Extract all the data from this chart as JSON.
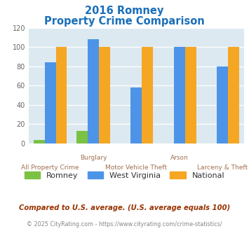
{
  "title_line1": "2016 Romney",
  "title_line2": "Property Crime Comparison",
  "title_color": "#1a6fba",
  "categories": [
    "All Property Crime",
    "Burglary",
    "Motor Vehicle Theft",
    "Arson",
    "Larceny & Theft"
  ],
  "x_labels_top": [
    "",
    "Burglary",
    "",
    "Arson",
    ""
  ],
  "x_labels_bottom": [
    "All Property Crime",
    "",
    "Motor Vehicle Theft",
    "",
    "Larceny & Theft"
  ],
  "romney": [
    3,
    13,
    0,
    0,
    0
  ],
  "west_virginia": [
    84,
    108,
    58,
    100,
    80
  ],
  "national": [
    100,
    100,
    100,
    100,
    100
  ],
  "romney_color": "#7bc143",
  "wv_color": "#4d94e8",
  "national_color": "#f5a623",
  "ylim": [
    0,
    120
  ],
  "yticks": [
    0,
    20,
    40,
    60,
    80,
    100,
    120
  ],
  "bg_color": "#dce9f0",
  "legend_labels": [
    "Romney",
    "West Virginia",
    "National"
  ],
  "legend_text_color": "#333333",
  "footnote1": "Compared to U.S. average. (U.S. average equals 100)",
  "footnote2": "© 2025 CityRating.com - https://www.cityrating.com/crime-statistics/",
  "footnote1_color": "#993300",
  "footnote2_color": "#888888",
  "footnote2_url_color": "#3a7fd4"
}
